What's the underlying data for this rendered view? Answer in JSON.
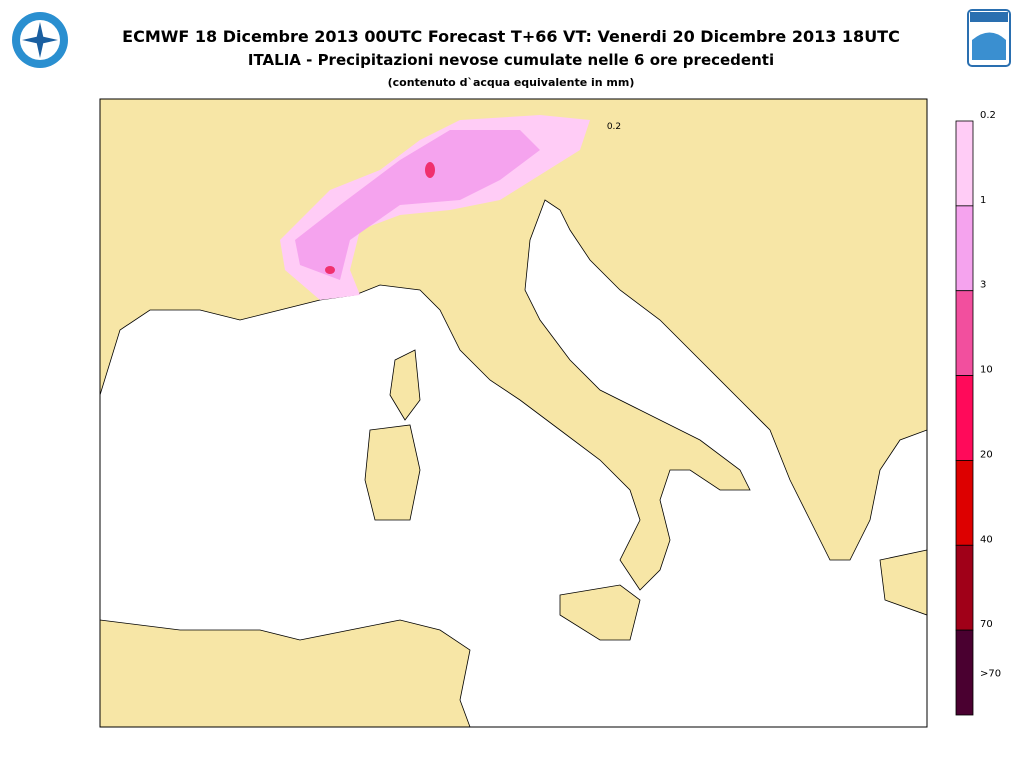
{
  "header": {
    "title": "ECMWF 18 Dicembre 2013 00UTC Forecast T+66 VT: Venerdi 20 Dicembre 2013 18UTC",
    "subtitle": "ITALIA - Precipitazioni nevose cumulate nelle 6 ore precedenti",
    "note": "(contenuto d`acqua equivalente in mm)"
  },
  "map": {
    "contour_label": "0.2"
  },
  "legend": {
    "labels": [
      "0.2",
      "1",
      "3",
      "10",
      "20",
      "40",
      "70",
      ">70"
    ],
    "colors": [
      "#ffccf6",
      "#f5a3ee",
      "#f24f9e",
      "#ff0a5a",
      "#dd0000",
      "#a00018",
      "#4a0030"
    ]
  }
}
